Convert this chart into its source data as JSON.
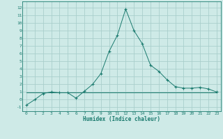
{
  "title": "",
  "xlabel": "Humidex (Indice chaleur)",
  "x": [
    0,
    1,
    2,
    3,
    4,
    5,
    6,
    7,
    8,
    9,
    10,
    11,
    12,
    13,
    14,
    15,
    16,
    17,
    18,
    19,
    20,
    21,
    22,
    23
  ],
  "y_main": [
    -0.7,
    0.0,
    0.8,
    1.0,
    0.9,
    0.9,
    0.2,
    1.1,
    2.0,
    3.4,
    6.3,
    8.4,
    11.8,
    9.0,
    7.3,
    4.5,
    3.7,
    2.6,
    1.7,
    1.5,
    1.5,
    1.6,
    1.4,
    1.0
  ],
  "y_flat": [
    0.9,
    0.9,
    0.9,
    0.9,
    0.9,
    0.9,
    0.9,
    0.9,
    0.9,
    0.9,
    0.9,
    0.9,
    0.9,
    0.9,
    0.9,
    0.9,
    0.9,
    0.9,
    0.9,
    0.9,
    0.9,
    0.9,
    0.9,
    0.9
  ],
  "line_color": "#1a7a6e",
  "bg_color": "#ceeae7",
  "grid_color": "#aacfcc",
  "ylim": [
    -1.5,
    12.8
  ],
  "xlim": [
    -0.5,
    23.5
  ],
  "yticks": [
    -1,
    0,
    1,
    2,
    3,
    4,
    5,
    6,
    7,
    8,
    9,
    10,
    11,
    12
  ],
  "xticks": [
    0,
    1,
    2,
    3,
    4,
    5,
    6,
    7,
    8,
    9,
    10,
    11,
    12,
    13,
    14,
    15,
    16,
    17,
    18,
    19,
    20,
    21,
    22,
    23
  ]
}
